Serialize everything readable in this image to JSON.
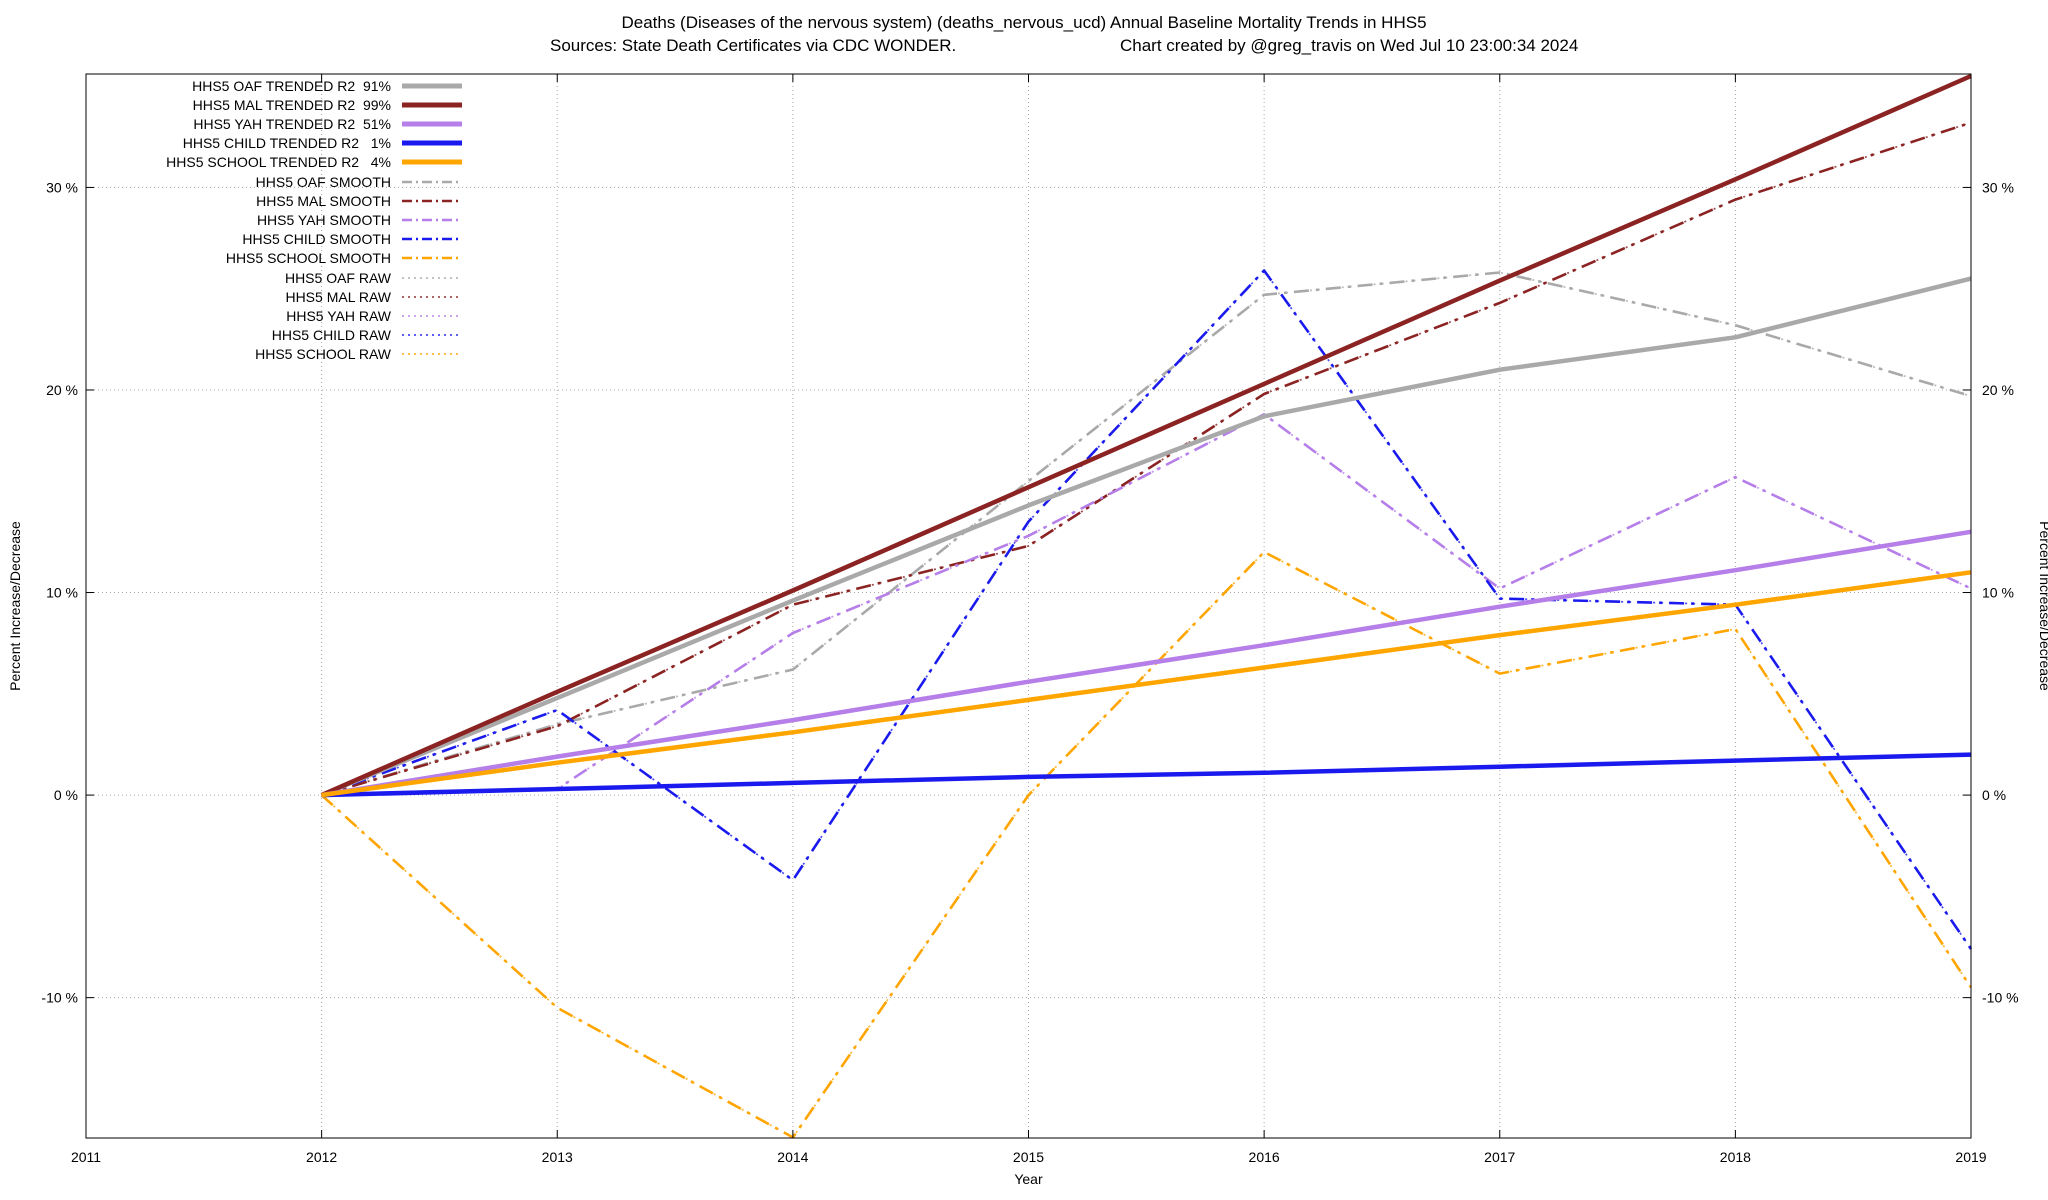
{
  "title": "Deaths (Diseases of the nervous system) (deaths_nervous_ucd)  Annual Baseline Mortality Trends in HHS5",
  "subtitle": {
    "sources": "Sources: State Death Certificates via CDC WONDER.",
    "credit": "Chart created by @greg_travis on Wed Jul 10 23:00:34 2024"
  },
  "axes": {
    "x_label": "Year",
    "y_label_left": "Percent Increase/Decrease",
    "y_label_right": "Percent Increase/Decrease",
    "x_ticks": [
      "2011",
      "2012",
      "2013",
      "2014",
      "2015",
      "2016",
      "2017",
      "2018",
      "2019"
    ],
    "y_ticks": [
      {
        "value": 30,
        "label": "30 %"
      },
      {
        "value": 20,
        "label": "20 %"
      },
      {
        "value": 10,
        "label": "10 %"
      },
      {
        "value": 0,
        "label": "0 %"
      },
      {
        "value": -10,
        "label": "-10 %"
      }
    ]
  },
  "colors": {
    "oaf": "#a9a9a9",
    "mal": "#8b2323",
    "yah": "#b57ee8",
    "child": "#1a1aee",
    "school": "#ffa500"
  },
  "chart_data": {
    "type": "line",
    "grid": true,
    "legend_position": "top-left",
    "xlim": [
      2011,
      2019
    ],
    "ylim": [
      -16.93,
      35.6
    ],
    "x": [
      2012,
      2013,
      2014,
      2015,
      2016,
      2017,
      2018,
      2019
    ],
    "series": [
      {
        "id": "hhs5-oaf-trended",
        "label": "HHS5 OAF TRENDED R2  91%",
        "color": "#a9a9a9",
        "style": "trend",
        "values": [
          0,
          4.8,
          9.6,
          14.3,
          18.7,
          21.0,
          22.6,
          25.5
        ]
      },
      {
        "id": "hhs5-mal-trended",
        "label": "HHS5 MAL TRENDED R2  99%",
        "color": "#8b2323",
        "style": "trend",
        "values": [
          0,
          5.1,
          10.1,
          15.2,
          20.3,
          25.4,
          30.4,
          35.5
        ]
      },
      {
        "id": "hhs5-yah-trended",
        "label": "HHS5 YAH TRENDED R2  51%",
        "color": "#b57ee8",
        "style": "trend",
        "values": [
          0,
          1.9,
          3.7,
          5.6,
          7.4,
          9.3,
          11.1,
          13.0
        ]
      },
      {
        "id": "hhs5-child-trended",
        "label": "HHS5 CHILD TRENDED R2   1%",
        "color": "#1a1aee",
        "style": "trend",
        "values": [
          0,
          0.3,
          0.6,
          0.9,
          1.1,
          1.4,
          1.7,
          2.0
        ]
      },
      {
        "id": "hhs5-school-trended",
        "label": "HHS5 SCHOOL TRENDED R2   4%",
        "color": "#ffa500",
        "style": "trend",
        "values": [
          0,
          1.6,
          3.1,
          4.7,
          6.3,
          7.9,
          9.4,
          11.0
        ]
      },
      {
        "id": "hhs5-oaf-smooth",
        "label": "HHS5 OAF SMOOTH",
        "color": "#a9a9a9",
        "style": "smooth",
        "values": [
          0,
          3.5,
          6.2,
          15.5,
          24.7,
          25.8,
          23.2,
          19.7
        ]
      },
      {
        "id": "hhs5-mal-smooth",
        "label": "HHS5 MAL SMOOTH",
        "color": "#8b2323",
        "style": "smooth",
        "values": [
          0,
          3.4,
          9.4,
          12.3,
          19.8,
          24.3,
          29.4,
          33.2
        ]
      },
      {
        "id": "hhs5-yah-smooth",
        "label": "HHS5 YAH SMOOTH",
        "color": "#b57ee8",
        "style": "smooth",
        "values": [
          0,
          0.3,
          8.0,
          12.8,
          18.8,
          10.2,
          15.7,
          10.2
        ]
      },
      {
        "id": "hhs5-child-smooth",
        "label": "HHS5 CHILD SMOOTH",
        "color": "#1a1aee",
        "style": "smooth",
        "values": [
          0,
          4.2,
          -4.2,
          13.5,
          25.9,
          9.7,
          9.4,
          -7.6
        ]
      },
      {
        "id": "hhs5-school-smooth",
        "label": "HHS5 SCHOOL SMOOTH",
        "color": "#ffa500",
        "style": "smooth",
        "values": [
          0,
          -10.5,
          -16.9,
          0.0,
          12.0,
          6.0,
          8.2,
          -9.5
        ]
      },
      {
        "id": "hhs5-oaf-raw",
        "label": "HHS5 OAF RAW",
        "color": "#a9a9a9",
        "style": "raw",
        "values": [
          0,
          3.5,
          6.2,
          15.5,
          24.7,
          25.8,
          23.2,
          19.7
        ]
      },
      {
        "id": "hhs5-mal-raw",
        "label": "HHS5 MAL RAW",
        "color": "#8b2323",
        "style": "raw",
        "values": [
          0,
          3.4,
          9.4,
          12.3,
          19.8,
          24.3,
          29.4,
          33.2
        ]
      },
      {
        "id": "hhs5-yah-raw",
        "label": "HHS5 YAH RAW",
        "color": "#b57ee8",
        "style": "raw",
        "values": [
          0,
          0.3,
          8.0,
          12.8,
          18.8,
          10.2,
          15.7,
          10.2
        ]
      },
      {
        "id": "hhs5-child-raw",
        "label": "HHS5 CHILD RAW",
        "color": "#1a1aee",
        "style": "raw",
        "values": [
          0,
          4.2,
          -4.2,
          13.5,
          25.9,
          9.7,
          9.4,
          -7.6
        ]
      },
      {
        "id": "hhs5-school-raw",
        "label": "HHS5 SCHOOL RAW",
        "color": "#ffa500",
        "style": "raw",
        "values": [
          0,
          -10.5,
          -16.9,
          0.0,
          12.0,
          6.0,
          8.2,
          -9.5
        ]
      }
    ]
  }
}
